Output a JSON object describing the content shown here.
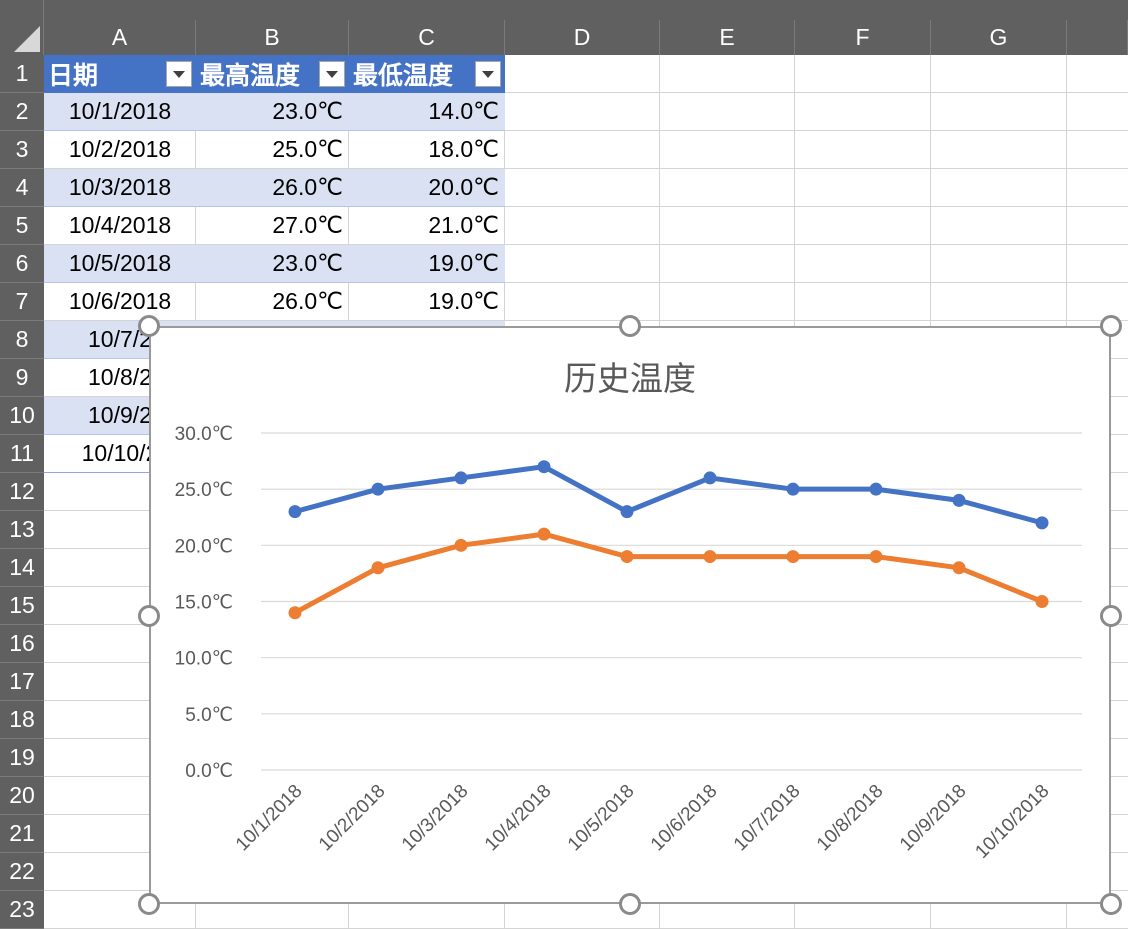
{
  "columns": [
    "A",
    "B",
    "C",
    "D",
    "E",
    "F",
    "G"
  ],
  "rows": [
    "1",
    "2",
    "3",
    "4",
    "5",
    "6",
    "7",
    "8",
    "9",
    "10",
    "11",
    "12",
    "13",
    "14",
    "15",
    "16",
    "17",
    "18",
    "19",
    "20",
    "21",
    "22",
    "23"
  ],
  "table": {
    "headers": [
      "日期",
      "最高温度",
      "最低温度"
    ],
    "rows": [
      [
        "10/1/2018",
        "23.0℃",
        "14.0℃"
      ],
      [
        "10/2/2018",
        "25.0℃",
        "18.0℃"
      ],
      [
        "10/3/2018",
        "26.0℃",
        "20.0℃"
      ],
      [
        "10/4/2018",
        "27.0℃",
        "21.0℃"
      ],
      [
        "10/5/2018",
        "23.0℃",
        "19.0℃"
      ],
      [
        "10/6/2018",
        "26.0℃",
        "19.0℃"
      ],
      [
        "10/7/2",
        "",
        ""
      ],
      [
        "10/8/2",
        "",
        ""
      ],
      [
        "10/9/2",
        "",
        ""
      ],
      [
        "10/10/2",
        "",
        ""
      ]
    ]
  },
  "chart_data": {
    "type": "line",
    "title": "历史温度",
    "categories": [
      "10/1/2018",
      "10/2/2018",
      "10/3/2018",
      "10/4/2018",
      "10/5/2018",
      "10/6/2018",
      "10/7/2018",
      "10/8/2018",
      "10/9/2018",
      "10/10/2018"
    ],
    "series": [
      {
        "values": [
          23,
          25,
          26,
          27,
          23,
          26,
          25,
          25,
          24,
          22
        ],
        "color": "#4472c4"
      },
      {
        "values": [
          14,
          18,
          20,
          21,
          19,
          19,
          19,
          19,
          18,
          15
        ],
        "color": "#ed7d31"
      }
    ],
    "y_ticks": [
      "0.0℃",
      "5.0℃",
      "10.0℃",
      "15.0℃",
      "20.0℃",
      "25.0℃",
      "30.0℃"
    ],
    "ylim": [
      0,
      30
    ],
    "grid": true,
    "legend": "none"
  },
  "colors": {
    "header_bg": "#606060",
    "table_header": "#4472c4",
    "table_band": "#d9e1f2"
  }
}
